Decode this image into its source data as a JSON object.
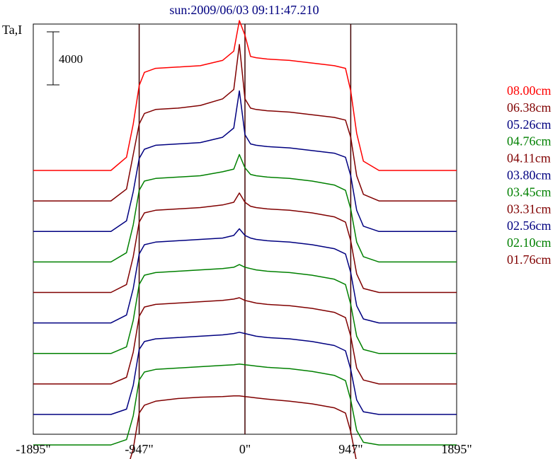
{
  "chart_data": {
    "type": "line",
    "title": "sun:2009/06/03 09:11:47.210",
    "ylabel": "Ta,I",
    "xlim": [
      -1895,
      1895
    ],
    "x_ticks": [
      {
        "value": -1895,
        "label": "-1895\""
      },
      {
        "value": -947,
        "label": "-947\""
      },
      {
        "value": 0,
        "label": "0\""
      },
      {
        "value": 947,
        "label": "947\""
      },
      {
        "value": 1895,
        "label": "1895\""
      }
    ],
    "vertical_lines": [
      -947,
      0,
      947
    ],
    "scale_bar": {
      "value": 4000,
      "label": "4000"
    },
    "profile_x": [
      -1895,
      -1500,
      -1200,
      -1060,
      -1000,
      -947,
      -900,
      -800,
      -600,
      -400,
      -200,
      -100,
      -50,
      0,
      50,
      100,
      200,
      400,
      600,
      800,
      900,
      947,
      1000,
      1060,
      1200,
      1500,
      1895
    ],
    "series": [
      {
        "name": "08.00cm",
        "color": "#ff0000",
        "baseline": 0,
        "disk": 7400,
        "values": [
          0,
          0,
          0,
          1000,
          3500,
          6400,
          7400,
          7700,
          7800,
          7900,
          8300,
          9000,
          11300,
          10200,
          8600,
          8500,
          8400,
          8300,
          8100,
          7900,
          7700,
          6000,
          2800,
          700,
          0,
          0,
          0
        ]
      },
      {
        "name": "06.38cm",
        "color": "#800000",
        "baseline": -2300,
        "disk": 6700,
        "values": [
          0,
          0,
          0,
          900,
          3500,
          5800,
          6600,
          6900,
          7000,
          7200,
          7700,
          8400,
          11800,
          7700,
          7000,
          6900,
          6800,
          6700,
          6500,
          6300,
          6100,
          4800,
          1900,
          500,
          0,
          0,
          0
        ]
      },
      {
        "name": "05.26cm",
        "color": "#000080",
        "baseline": -4600,
        "disk": 6300,
        "values": [
          0,
          0,
          0,
          800,
          3000,
          5500,
          6200,
          6500,
          6600,
          6700,
          7100,
          7800,
          10600,
          7300,
          6600,
          6500,
          6400,
          6300,
          6100,
          5900,
          5600,
          4200,
          1600,
          400,
          0,
          0,
          0
        ]
      },
      {
        "name": "04.76cm",
        "color": "#008000",
        "baseline": -6900,
        "disk": 6100,
        "values": [
          0,
          0,
          0,
          700,
          2800,
          5400,
          6100,
          6300,
          6400,
          6500,
          6800,
          7000,
          8100,
          7100,
          6600,
          6500,
          6400,
          6300,
          6100,
          5800,
          5400,
          4000,
          1500,
          400,
          0,
          0,
          0
        ]
      },
      {
        "name": "04.11cm",
        "color": "#800000",
        "baseline": -9200,
        "disk": 6000,
        "values": [
          0,
          0,
          0,
          600,
          2700,
          5300,
          6000,
          6200,
          6300,
          6400,
          6600,
          6800,
          7500,
          6800,
          6500,
          6400,
          6300,
          6200,
          6000,
          5700,
          5300,
          3900,
          1400,
          300,
          0,
          0,
          0
        ]
      },
      {
        "name": "03.80cm",
        "color": "#000080",
        "baseline": -11500,
        "disk": 5900,
        "values": [
          0,
          0,
          0,
          600,
          2600,
          5200,
          5900,
          6100,
          6200,
          6300,
          6400,
          6600,
          7100,
          6600,
          6400,
          6300,
          6200,
          6100,
          5900,
          5600,
          5200,
          3800,
          1300,
          300,
          0,
          0,
          0
        ]
      },
      {
        "name": "03.45cm",
        "color": "#008000",
        "baseline": -13800,
        "disk": 5900,
        "values": [
          0,
          0,
          0,
          500,
          2500,
          5200,
          5900,
          6100,
          6200,
          6300,
          6400,
          6500,
          6700,
          6500,
          6400,
          6300,
          6200,
          6100,
          5900,
          5600,
          5200,
          3700,
          1300,
          300,
          0,
          0,
          0
        ]
      },
      {
        "name": "03.31cm",
        "color": "#800000",
        "baseline": -16100,
        "disk": 5800,
        "values": [
          0,
          0,
          0,
          500,
          2400,
          5100,
          5800,
          6000,
          6100,
          6200,
          6300,
          6400,
          6500,
          6300,
          6200,
          6100,
          6000,
          5900,
          5700,
          5400,
          5000,
          3600,
          1200,
          300,
          0,
          0,
          0
        ]
      },
      {
        "name": "02.56cm",
        "color": "#000080",
        "baseline": -18400,
        "disk": 5500,
        "values": [
          0,
          0,
          0,
          400,
          2200,
          4900,
          5500,
          5700,
          5800,
          5900,
          6000,
          6100,
          6200,
          6100,
          6000,
          5900,
          5800,
          5700,
          5500,
          5200,
          4800,
          3400,
          1100,
          200,
          0,
          0,
          0
        ]
      },
      {
        "name": "02.10cm",
        "color": "#008000",
        "baseline": -20700,
        "disk": 5600,
        "values": [
          0,
          0,
          0,
          400,
          2200,
          4900,
          5500,
          5700,
          5800,
          5900,
          6000,
          6050,
          6100,
          6050,
          6000,
          5950,
          5850,
          5750,
          5550,
          5250,
          4850,
          3400,
          1100,
          200,
          0,
          0,
          0
        ]
      },
      {
        "name": "01.76cm",
        "color": "#800000",
        "baseline": -23000,
        "disk": 5400,
        "values": [
          0,
          0,
          0,
          300,
          2000,
          4700,
          5300,
          5600,
          5800,
          5900,
          5950,
          6000,
          6000,
          5950,
          5900,
          5850,
          5750,
          5600,
          5400,
          5100,
          4700,
          3300,
          1000,
          200,
          0,
          0,
          0
        ]
      }
    ]
  }
}
